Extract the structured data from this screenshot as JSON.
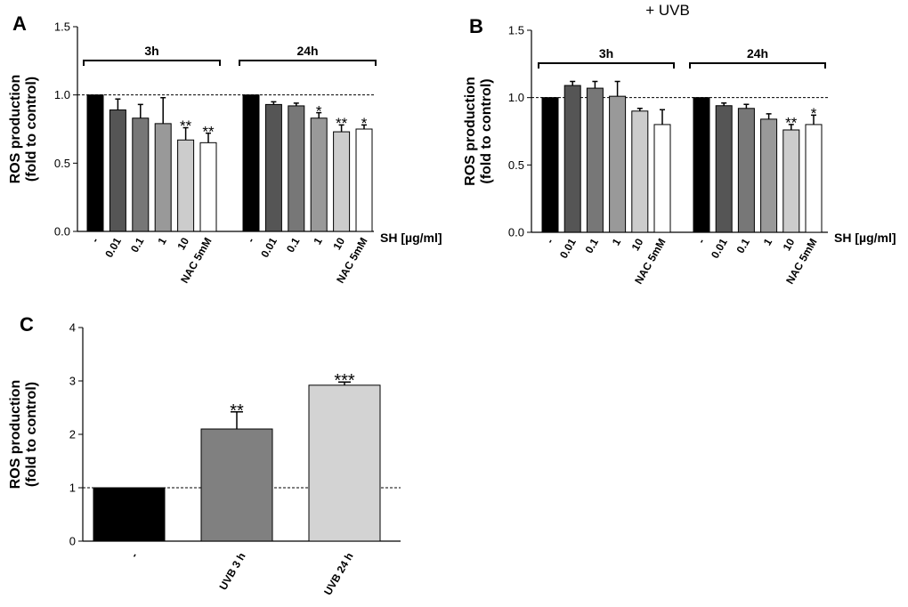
{
  "chart_data": [
    {
      "type": "bar",
      "panel": "A",
      "y_label": [
        "ROS production",
        "(fold to control)"
      ],
      "x_label": "SH [µg/ml]",
      "categories": [
        "-",
        "0.01",
        "0.1",
        "1",
        "10",
        "NAC 5mM"
      ],
      "colors": [
        "#000000",
        "#555555",
        "#777777",
        "#999999",
        "#cccccc",
        "#ffffff"
      ],
      "series": [
        {
          "name": "3h",
          "values": [
            1.0,
            0.89,
            0.83,
            0.79,
            0.67,
            0.65
          ],
          "errors": [
            null,
            0.08,
            0.1,
            0.19,
            0.09,
            0.07
          ],
          "annotations": [
            null,
            null,
            null,
            null,
            "**",
            "**"
          ]
        },
        {
          "name": "24h",
          "values": [
            1.0,
            0.93,
            0.92,
            0.83,
            0.73,
            0.75
          ],
          "errors": [
            null,
            0.02,
            0.02,
            0.04,
            0.05,
            0.03
          ],
          "annotations": [
            null,
            null,
            null,
            "*",
            "**",
            "*"
          ]
        }
      ],
      "reference_line": 1.0,
      "ylim": [
        0,
        1.5
      ],
      "yticks": [
        {
          "value": 0,
          "label": "0.0"
        },
        {
          "value": 0.5,
          "label": "0.5"
        },
        {
          "value": 1,
          "label": "1.0"
        },
        {
          "value": 1.5,
          "label": "1.5"
        }
      ]
    },
    {
      "type": "bar",
      "panel": "B",
      "title": "+ UVB",
      "y_label": [
        "ROS production",
        "(fold to control)"
      ],
      "x_label": "SH [µg/ml]",
      "categories": [
        "-",
        "0.01",
        "0.1",
        "1",
        "10",
        "NAC 5mM"
      ],
      "colors": [
        "#000000",
        "#555555",
        "#777777",
        "#999999",
        "#cccccc",
        "#ffffff"
      ],
      "series": [
        {
          "name": "3h",
          "values": [
            1.0,
            1.09,
            1.07,
            1.01,
            0.9,
            0.8
          ],
          "errors": [
            null,
            0.03,
            0.05,
            0.11,
            0.02,
            0.11
          ],
          "annotations": [
            null,
            null,
            null,
            null,
            null,
            null
          ]
        },
        {
          "name": "24h",
          "values": [
            1.0,
            0.94,
            0.92,
            0.84,
            0.76,
            0.8
          ],
          "errors": [
            null,
            0.02,
            0.03,
            0.04,
            0.04,
            0.07
          ],
          "annotations": [
            null,
            null,
            null,
            null,
            "**",
            "*"
          ]
        }
      ],
      "reference_line": 1.0,
      "ylim": [
        0,
        1.5
      ],
      "yticks": [
        {
          "value": 0,
          "label": "0.0"
        },
        {
          "value": 0.5,
          "label": "0.5"
        },
        {
          "value": 1,
          "label": "1.0"
        },
        {
          "value": 1.5,
          "label": "1.5"
        }
      ]
    },
    {
      "type": "bar",
      "panel": "C",
      "y_label": [
        "ROS production",
        "(fold to control)"
      ],
      "categories": [
        "-",
        "UVB 3 h",
        "UVB 24 h"
      ],
      "colors": [
        "#000000",
        "#808080",
        "#d3d3d3"
      ],
      "values": [
        1.0,
        2.1,
        2.92
      ],
      "errors": [
        null,
        0.32,
        0.06
      ],
      "annotations": [
        null,
        "**",
        "***"
      ],
      "reference_line": 1,
      "ylim": [
        0,
        4
      ],
      "yticks": [
        0,
        1,
        2,
        3,
        4
      ]
    }
  ]
}
